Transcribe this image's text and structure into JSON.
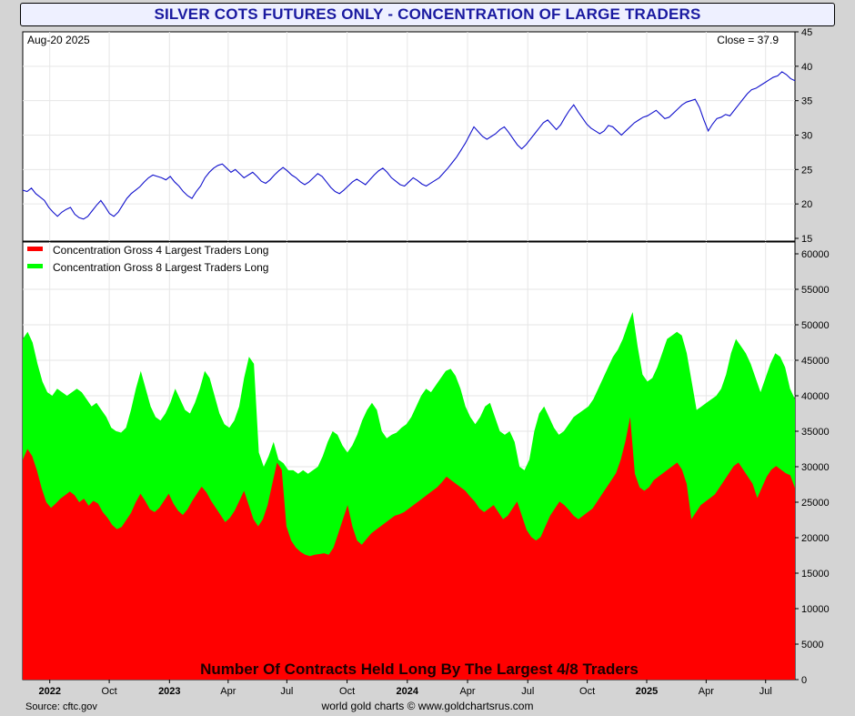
{
  "title": "SILVER COTS FUTURES ONLY - CONCENTRATION OF LARGE TRADERS",
  "footer": {
    "source": "Source: cftc.gov",
    "credit": "world gold charts © www.goldchartsrus.com"
  },
  "colors": {
    "price_line": "#1010cc",
    "gross4": "#ff0000",
    "gross8": "#00ff00",
    "title_text": "#1a1aa0"
  },
  "chart_data": [
    {
      "type": "line",
      "series": [
        {
          "name": "",
          "values": [
            22.0,
            21.8,
            22.3,
            21.5,
            21.0,
            20.5,
            19.5,
            18.8,
            18.2,
            18.8,
            19.2,
            19.5,
            18.5,
            18.0,
            17.8,
            18.2,
            19.0,
            19.8,
            20.5,
            19.6,
            18.6,
            18.2,
            18.8,
            19.8,
            20.8,
            21.5,
            22.0,
            22.5,
            23.2,
            23.8,
            24.2,
            24.0,
            23.8,
            23.5,
            24.0,
            23.2,
            22.6,
            21.8,
            21.2,
            20.8,
            21.8,
            22.6,
            23.8,
            24.6,
            25.2,
            25.6,
            25.8,
            25.2,
            24.6,
            25.0,
            24.4,
            23.8,
            24.2,
            24.6,
            24.0,
            23.3,
            23.0,
            23.5,
            24.2,
            24.8,
            25.3,
            24.8,
            24.2,
            23.8,
            23.2,
            22.8,
            23.2,
            23.8,
            24.4,
            24.0,
            23.2,
            22.4,
            21.8,
            21.5,
            22.0,
            22.6,
            23.2,
            23.6,
            23.2,
            22.8,
            23.5,
            24.2,
            24.8,
            25.2,
            24.6,
            23.8,
            23.3,
            22.8,
            22.6,
            23.2,
            23.8,
            23.4,
            22.9,
            22.6,
            23.0,
            23.4,
            23.8,
            24.5,
            25.2,
            26.0,
            26.8,
            27.8,
            28.8,
            30.0,
            31.2,
            30.5,
            29.8,
            29.4,
            29.8,
            30.2,
            30.8,
            31.2,
            30.4,
            29.5,
            28.6,
            28.0,
            28.6,
            29.4,
            30.2,
            31.0,
            31.8,
            32.2,
            31.5,
            30.8,
            31.5,
            32.6,
            33.6,
            34.4,
            33.4,
            32.5,
            31.6,
            31.0,
            30.6,
            30.2,
            30.6,
            31.4,
            31.2,
            30.6,
            30.0,
            30.6,
            31.2,
            31.8,
            32.2,
            32.6,
            32.8,
            33.2,
            33.6,
            33.0,
            32.4,
            32.6,
            33.2,
            33.8,
            34.4,
            34.8,
            35.0,
            35.2,
            34.0,
            32.2,
            30.6,
            31.6,
            32.4,
            32.6,
            33.0,
            32.8,
            33.6,
            34.4,
            35.2,
            36.0,
            36.6,
            36.8,
            37.2,
            37.6,
            38.0,
            38.4,
            38.6,
            39.2,
            38.8,
            38.2,
            37.9
          ]
        }
      ],
      "xlabel": "",
      "ylabel": "",
      "ylim": [
        15,
        45
      ],
      "yticks": [
        15,
        20,
        25,
        30,
        35,
        40,
        45
      ],
      "annotations": {
        "date": "Aug-20  2025",
        "close": "Close = 37.9"
      },
      "grid": true
    },
    {
      "type": "area",
      "series": [
        {
          "name": "Concentration Gross 4 Largest Traders Long",
          "values": [
            31000,
            32500,
            31500,
            29500,
            27000,
            25000,
            24200,
            24800,
            25500,
            26000,
            26500,
            26000,
            25000,
            25500,
            24500,
            25200,
            24800,
            23600,
            22800,
            21800,
            21200,
            21500,
            22500,
            23500,
            25000,
            26200,
            25200,
            24000,
            23600,
            24200,
            25200,
            26200,
            24800,
            23800,
            23200,
            24000,
            25200,
            26200,
            27200,
            26400,
            25200,
            24200,
            23200,
            22200,
            22800,
            23800,
            25200,
            26600,
            24600,
            22600,
            21600,
            22600,
            24600,
            27600,
            30600,
            29600,
            21600,
            19600,
            18600,
            18000,
            17600,
            17400,
            17600,
            17700,
            17800,
            17600,
            18600,
            20600,
            22600,
            24600,
            21600,
            19600,
            19000,
            19800,
            20600,
            21100,
            21600,
            22100,
            22600,
            23100,
            23300,
            23600,
            24100,
            24600,
            25100,
            25600,
            26100,
            26600,
            27100,
            27800,
            28600,
            28100,
            27600,
            27100,
            26600,
            25800,
            25100,
            24100,
            23600,
            24100,
            24600,
            23600,
            22600,
            23100,
            24100,
            25100,
            23100,
            21100,
            20100,
            19600,
            20100,
            21600,
            23100,
            24100,
            25100,
            24600,
            23900,
            23100,
            22600,
            23100,
            23600,
            24100,
            25100,
            26100,
            27100,
            28100,
            29100,
            31000,
            33600,
            37000,
            29000,
            27100,
            26600,
            27100,
            28100,
            28600,
            29100,
            29600,
            30100,
            30600,
            29600,
            27600,
            22600,
            23600,
            24600,
            25100,
            25600,
            26100,
            27100,
            28100,
            29100,
            30100,
            30600,
            29600,
            28600,
            27600,
            25600,
            27100,
            28600,
            29600,
            30100,
            29600,
            29100,
            28800,
            27000
          ]
        },
        {
          "name": "Concentration Gross 8 Largest Traders Long",
          "values": [
            48000,
            49000,
            47500,
            44500,
            42000,
            40500,
            40000,
            41000,
            40500,
            40000,
            40500,
            41000,
            40500,
            39500,
            38500,
            39000,
            38000,
            37000,
            35500,
            35000,
            34800,
            35500,
            38000,
            41000,
            43500,
            41000,
            38500,
            37000,
            36500,
            37500,
            39000,
            41000,
            39500,
            38000,
            37500,
            39000,
            41000,
            43500,
            42500,
            40000,
            37500,
            36000,
            35500,
            36500,
            38500,
            42500,
            45500,
            44500,
            32000,
            30000,
            31500,
            33500,
            31000,
            30500,
            29500,
            29500,
            29000,
            29500,
            29000,
            29500,
            30000,
            31500,
            33500,
            35000,
            34500,
            33000,
            32000,
            33000,
            34500,
            36500,
            38000,
            39000,
            38000,
            35000,
            34000,
            34500,
            34800,
            35500,
            36000,
            37000,
            38500,
            40000,
            41000,
            40500,
            41500,
            42500,
            43500,
            43800,
            42800,
            41000,
            38500,
            37000,
            36000,
            37000,
            38500,
            39000,
            37000,
            35000,
            34500,
            35000,
            33500,
            30000,
            29500,
            31000,
            35000,
            37500,
            38500,
            37000,
            35500,
            34500,
            35000,
            36000,
            37000,
            37500,
            38000,
            38500,
            39500,
            41000,
            42500,
            44000,
            45500,
            46500,
            48000,
            50000,
            51800,
            47000,
            43000,
            42000,
            42500,
            44000,
            46000,
            48000,
            48500,
            49000,
            48500,
            46000,
            42000,
            38000,
            38500,
            39000,
            39500,
            40000,
            41000,
            43000,
            46000,
            48000,
            47000,
            46000,
            44500,
            42500,
            40500,
            42500,
            44500,
            46000,
            45500,
            44000,
            41000,
            39500
          ]
        }
      ],
      "xlabel": "",
      "ylabel": "",
      "ylim": [
        0,
        60000
      ],
      "yticks": [
        0,
        5000,
        10000,
        15000,
        20000,
        25000,
        30000,
        35000,
        40000,
        45000,
        50000,
        55000,
        60000
      ],
      "title": "Number Of Contracts Held Long By The Largest 4/8 Traders",
      "legend": "top-left",
      "grid": true
    }
  ],
  "x_axis": {
    "ticks": [
      {
        "label": "2022",
        "pos": 0.035,
        "bold": true
      },
      {
        "label": "Oct",
        "pos": 0.112,
        "bold": false
      },
      {
        "label": "2023",
        "pos": 0.19,
        "bold": true
      },
      {
        "label": "Apr",
        "pos": 0.266,
        "bold": false
      },
      {
        "label": "Jul",
        "pos": 0.342,
        "bold": false
      },
      {
        "label": "Oct",
        "pos": 0.42,
        "bold": false
      },
      {
        "label": "2024",
        "pos": 0.498,
        "bold": true
      },
      {
        "label": "Apr",
        "pos": 0.576,
        "bold": false
      },
      {
        "label": "Jul",
        "pos": 0.654,
        "bold": false
      },
      {
        "label": "Oct",
        "pos": 0.731,
        "bold": false
      },
      {
        "label": "2025",
        "pos": 0.808,
        "bold": true
      },
      {
        "label": "Apr",
        "pos": 0.885,
        "bold": false
      },
      {
        "label": "Jul",
        "pos": 0.962,
        "bold": false
      }
    ]
  }
}
